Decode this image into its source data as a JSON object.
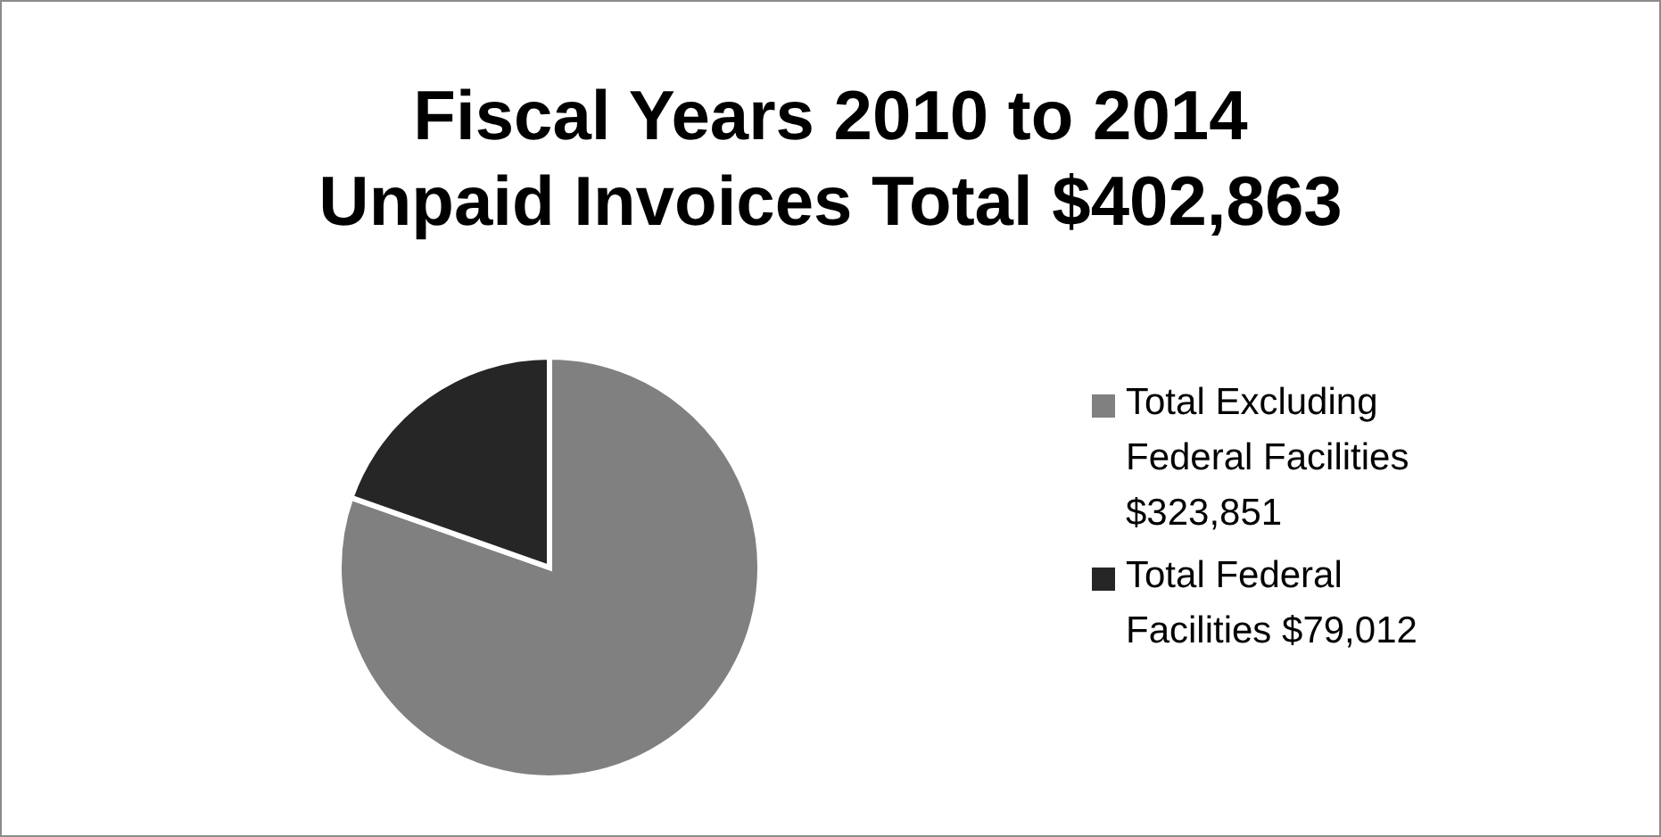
{
  "chart_data": {
    "type": "pie",
    "title": "Fiscal Years 2010 to 2014 Unpaid Invoices Total $402,863",
    "categories": [
      "Total Excluding Federal Facilities $323,851",
      "Total Federal Facilities $79,012"
    ],
    "values": [
      323851,
      79012
    ],
    "colors": [
      "#808080",
      "#262626"
    ],
    "legend": "right"
  }
}
